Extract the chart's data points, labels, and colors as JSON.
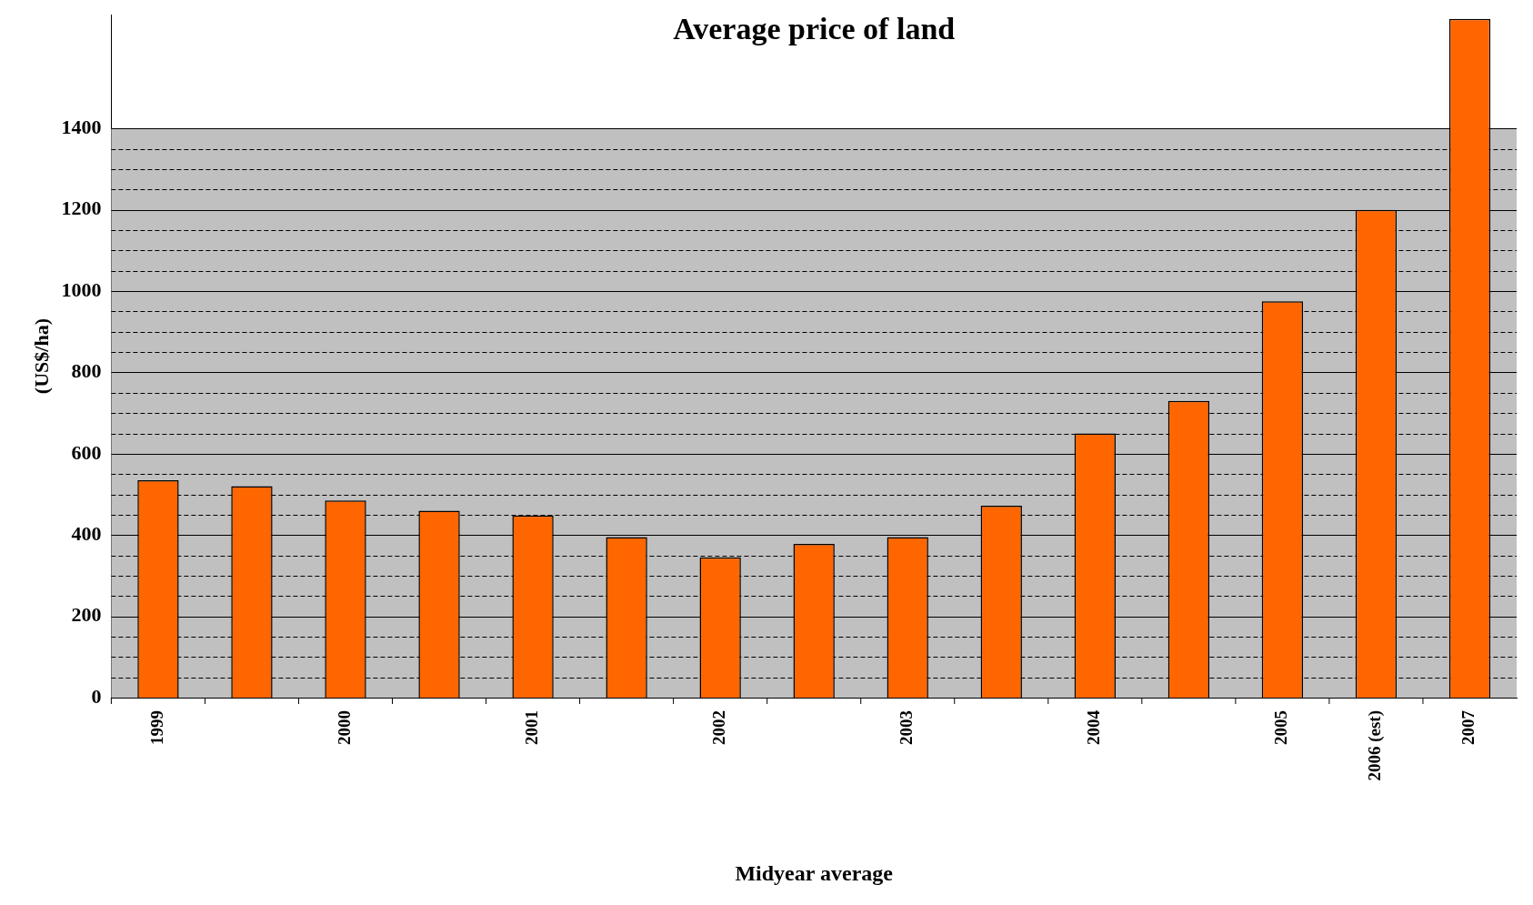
{
  "chart_data": {
    "type": "bar",
    "title": "Average price of land",
    "xlabel": "Midyear average",
    "ylabel": "(US$/ha)",
    "categories": [
      "1999",
      null,
      "2000",
      null,
      "2001",
      null,
      "2002",
      null,
      "2003",
      null,
      "2004",
      null,
      "2005",
      "2006 (est)",
      "2007"
    ],
    "values": [
      535,
      520,
      485,
      460,
      448,
      395,
      345,
      378,
      395,
      472,
      650,
      730,
      975,
      1200,
      1670
    ],
    "color": "#ff6600",
    "ylim": [
      0,
      1680
    ],
    "yticks": [
      0,
      {
        "value": 50,
        "label": null
      },
      {
        "value": 100,
        "label": null
      },
      {
        "value": 150,
        "label": null
      },
      200,
      {
        "value": 250,
        "label": null
      },
      {
        "value": 300,
        "label": null
      },
      {
        "value": 350,
        "label": null
      },
      400,
      {
        "value": 450,
        "label": null
      },
      {
        "value": 500,
        "label": null
      },
      {
        "value": 550,
        "label": null
      },
      600,
      {
        "value": 650,
        "label": null
      },
      {
        "value": 700,
        "label": null
      },
      {
        "value": 750,
        "label": null
      },
      800,
      {
        "value": 850,
        "label": null
      },
      {
        "value": 900,
        "label": null
      },
      {
        "value": 950,
        "label": null
      },
      1000,
      {
        "value": 1050,
        "label": null
      },
      {
        "value": 1100,
        "label": null
      },
      {
        "value": 1150,
        "label": null
      },
      1200,
      {
        "value": 1250,
        "label": null
      },
      {
        "value": 1300,
        "label": null
      },
      {
        "value": 1350,
        "label": null
      },
      1400
    ],
    "bands": [
      {
        "axis": "y",
        "from": 0,
        "to": 1400,
        "color": "#c0c0c0"
      }
    ],
    "grid": true,
    "legend": false
  }
}
